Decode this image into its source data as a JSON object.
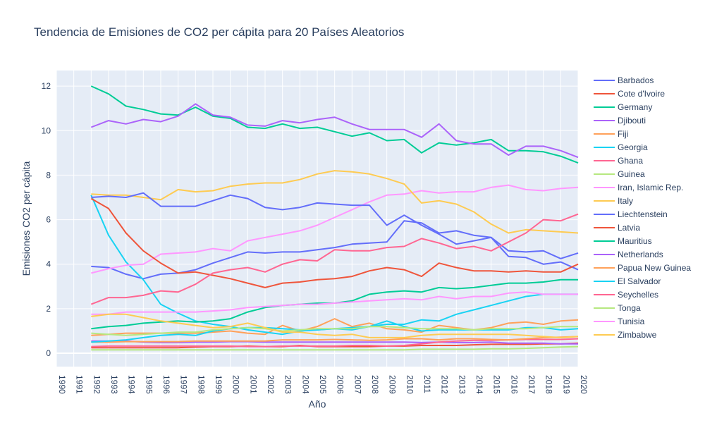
{
  "chart_data": {
    "type": "line",
    "title": "Tendencia de Emisiones de CO2 per cápita para 20 Países Aleatorios",
    "xlabel": "Año",
    "ylabel": "Emisiones CO2 per cápita",
    "xlim": [
      1990,
      2020
    ],
    "ylim": [
      -0.6,
      12.7
    ],
    "x_ticks": [
      "1990",
      "1991",
      "1992",
      "1993",
      "1994",
      "1995",
      "1996",
      "1997",
      "1998",
      "1999",
      "2000",
      "2001",
      "2002",
      "2003",
      "2004",
      "2005",
      "2006",
      "2007",
      "2008",
      "2009",
      "2010",
      "2011",
      "2012",
      "2013",
      "2014",
      "2015",
      "2016",
      "2017",
      "2018",
      "2019",
      "2020"
    ],
    "y_ticks": [
      0,
      2,
      4,
      6,
      8,
      10,
      12
    ],
    "grid": true,
    "legend_position": "right",
    "x": [
      1992,
      1993,
      1994,
      1995,
      1996,
      1997,
      1998,
      1999,
      2000,
      2001,
      2002,
      2003,
      2004,
      2005,
      2006,
      2007,
      2008,
      2009,
      2010,
      2011,
      2012,
      2013,
      2014,
      2015,
      2016,
      2017,
      2018,
      2019,
      2020
    ],
    "series": [
      {
        "name": "Barbados",
        "color": "#636efa",
        "values": [
          3.9,
          3.85,
          3.55,
          3.35,
          3.55,
          3.6,
          3.75,
          4.05,
          4.3,
          4.55,
          4.5,
          4.55,
          4.55,
          4.65,
          4.75,
          4.9,
          4.95,
          5.0,
          5.95,
          5.85,
          5.4,
          5.5,
          5.3,
          5.2,
          4.6,
          4.55,
          4.6,
          4.25,
          4.5
        ]
      },
      {
        "name": "Cote d'Ivoire",
        "color": "#ef553b",
        "values": [
          0.25,
          0.25,
          0.25,
          0.25,
          0.25,
          0.25,
          0.28,
          0.3,
          0.3,
          0.32,
          0.3,
          0.3,
          0.35,
          0.3,
          0.3,
          0.3,
          0.3,
          0.32,
          0.32,
          0.35,
          0.35,
          0.35,
          0.38,
          0.4,
          0.4,
          0.4,
          0.42,
          0.42,
          0.45
        ]
      },
      {
        "name": "Germany",
        "color": "#00cc96",
        "values": [
          12.0,
          11.65,
          11.1,
          10.95,
          10.75,
          10.7,
          11.05,
          10.65,
          10.55,
          10.15,
          10.1,
          10.3,
          10.1,
          10.15,
          9.95,
          9.75,
          9.9,
          9.55,
          9.6,
          9.0,
          9.45,
          9.35,
          9.45,
          9.6,
          9.1,
          9.1,
          9.05,
          8.85,
          8.55
        ]
      },
      {
        "name": "Djibouti",
        "color": "#ab63fa",
        "values": [
          0.55,
          0.55,
          0.55,
          0.5,
          0.48,
          0.48,
          0.5,
          0.5,
          0.52,
          0.52,
          0.5,
          0.5,
          0.5,
          0.5,
          0.5,
          0.5,
          0.5,
          0.5,
          0.5,
          0.48,
          0.5,
          0.48,
          0.48,
          0.5,
          0.45,
          0.45,
          0.45,
          0.42,
          0.42
        ]
      },
      {
        "name": "Fiji",
        "color": "#ffa15a",
        "values": [
          0.8,
          0.85,
          0.9,
          0.9,
          0.9,
          0.9,
          0.9,
          0.95,
          1.0,
          0.9,
          0.85,
          1.25,
          1.0,
          1.2,
          1.55,
          1.2,
          1.35,
          1.1,
          1.05,
          0.95,
          1.25,
          1.15,
          1.05,
          1.15,
          1.35,
          1.4,
          1.3,
          1.45,
          1.5
        ]
      },
      {
        "name": "Georgia",
        "color": "#19d3f3",
        "values": [
          7.1,
          5.3,
          4.1,
          3.3,
          2.2,
          1.8,
          1.45,
          1.3,
          1.2,
          1.05,
          0.95,
          0.85,
          1.0,
          1.05,
          1.1,
          1.15,
          1.2,
          1.3,
          1.3,
          1.5,
          1.45,
          1.75,
          1.95,
          2.15,
          2.35,
          2.55,
          2.65,
          2.65,
          2.65
        ]
      },
      {
        "name": "Ghana",
        "color": "#ff6692",
        "values": [
          0.3,
          0.32,
          0.32,
          0.32,
          0.32,
          0.32,
          0.32,
          0.32,
          0.32,
          0.3,
          0.3,
          0.32,
          0.32,
          0.32,
          0.32,
          0.35,
          0.35,
          0.32,
          0.35,
          0.42,
          0.5,
          0.55,
          0.58,
          0.58,
          0.6,
          0.62,
          0.62,
          0.62,
          0.65
        ]
      },
      {
        "name": "Guinea",
        "color": "#b6e880",
        "values": [
          0.15,
          0.15,
          0.15,
          0.15,
          0.15,
          0.15,
          0.15,
          0.15,
          0.15,
          0.15,
          0.15,
          0.15,
          0.15,
          0.15,
          0.15,
          0.15,
          0.15,
          0.15,
          0.15,
          0.18,
          0.18,
          0.18,
          0.18,
          0.2,
          0.2,
          0.22,
          0.25,
          0.28,
          0.3
        ]
      },
      {
        "name": "Iran, Islamic Rep.",
        "color": "#ff97ff",
        "values": [
          3.6,
          3.8,
          3.95,
          4.0,
          4.45,
          4.5,
          4.55,
          4.7,
          4.6,
          5.05,
          5.2,
          5.35,
          5.5,
          5.75,
          6.1,
          6.45,
          6.8,
          7.1,
          7.15,
          7.3,
          7.2,
          7.25,
          7.25,
          7.45,
          7.55,
          7.35,
          7.3,
          7.4,
          7.45
        ]
      },
      {
        "name": "Italy",
        "color": "#fecb52",
        "values": [
          7.15,
          7.1,
          7.1,
          7.0,
          6.9,
          7.35,
          7.25,
          7.3,
          7.5,
          7.6,
          7.65,
          7.65,
          7.8,
          8.05,
          8.2,
          8.15,
          8.05,
          7.85,
          7.6,
          6.75,
          6.85,
          6.7,
          6.35,
          5.8,
          5.4,
          5.55,
          5.5,
          5.45,
          5.4
        ]
      },
      {
        "name": "Liechtenstein",
        "color": "#636efa",
        "values": [
          7.0,
          7.05,
          7.0,
          7.2,
          6.6,
          6.6,
          6.6,
          6.85,
          7.1,
          6.95,
          6.55,
          6.45,
          6.55,
          6.75,
          6.7,
          6.65,
          6.65,
          5.75,
          6.2,
          5.75,
          5.35,
          4.9,
          5.05,
          5.2,
          4.35,
          4.3,
          4.0,
          4.1,
          3.75
        ]
      },
      {
        "name": "Latvia",
        "color": "#ef553b",
        "values": [
          6.95,
          6.5,
          5.4,
          4.6,
          4.05,
          3.6,
          3.65,
          3.5,
          3.35,
          3.15,
          2.95,
          3.15,
          3.2,
          3.3,
          3.35,
          3.45,
          3.7,
          3.85,
          3.75,
          3.45,
          4.05,
          3.85,
          3.7,
          3.7,
          3.65,
          3.7,
          3.65,
          3.65,
          4.0
        ]
      },
      {
        "name": "Mauritius",
        "color": "#00cc96",
        "values": [
          1.1,
          1.2,
          1.25,
          1.35,
          1.4,
          1.45,
          1.4,
          1.45,
          1.55,
          1.85,
          2.05,
          2.15,
          2.2,
          2.25,
          2.25,
          2.35,
          2.65,
          2.75,
          2.8,
          2.75,
          2.95,
          2.9,
          2.95,
          3.05,
          3.15,
          3.15,
          3.2,
          3.3,
          3.3
        ]
      },
      {
        "name": "Netherlands",
        "color": "#ab63fa",
        "values": [
          10.15,
          10.45,
          10.3,
          10.5,
          10.4,
          10.65,
          11.2,
          10.7,
          10.6,
          10.25,
          10.2,
          10.45,
          10.35,
          10.5,
          10.6,
          10.3,
          10.05,
          10.05,
          10.05,
          9.7,
          10.3,
          9.55,
          9.4,
          9.4,
          8.9,
          9.3,
          9.3,
          9.1,
          8.8
        ]
      },
      {
        "name": "Papua New Guinea",
        "color": "#ffa15a",
        "values": [
          0.5,
          0.5,
          0.52,
          0.52,
          0.52,
          0.52,
          0.55,
          0.55,
          0.55,
          0.55,
          0.55,
          0.6,
          0.6,
          0.6,
          0.62,
          0.6,
          0.58,
          0.6,
          0.65,
          0.65,
          0.6,
          0.65,
          0.65,
          0.62,
          0.6,
          0.65,
          0.7,
          0.72,
          0.75
        ]
      },
      {
        "name": "El Salvador",
        "color": "#19d3f3",
        "values": [
          0.5,
          0.55,
          0.6,
          0.7,
          0.8,
          0.85,
          0.8,
          1.0,
          1.1,
          1.15,
          1.15,
          1.1,
          1.05,
          1.05,
          1.1,
          1.05,
          1.2,
          1.45,
          1.2,
          1.0,
          1.05,
          1.05,
          1.05,
          1.05,
          1.05,
          1.15,
          1.15,
          1.05,
          1.1
        ]
      },
      {
        "name": "Seychelles",
        "color": "#ff6692",
        "values": [
          2.2,
          2.5,
          2.5,
          2.6,
          2.8,
          2.75,
          3.1,
          3.6,
          3.75,
          3.85,
          3.65,
          4.0,
          4.2,
          4.15,
          4.65,
          4.6,
          4.6,
          4.75,
          4.8,
          5.15,
          4.95,
          4.7,
          4.8,
          4.6,
          5.0,
          5.4,
          6.0,
          5.95,
          6.25
        ]
      },
      {
        "name": "Tonga",
        "color": "#b6e880",
        "values": [
          0.9,
          0.85,
          0.8,
          0.85,
          0.9,
          0.95,
          0.95,
          1.05,
          1.1,
          1.15,
          1.1,
          1.0,
          1.05,
          1.1,
          1.1,
          1.1,
          1.2,
          1.2,
          1.15,
          1.1,
          1.1,
          1.1,
          1.05,
          1.1,
          1.1,
          1.1,
          1.15,
          1.2,
          1.2
        ]
      },
      {
        "name": "Tunisia",
        "color": "#ff97ff",
        "values": [
          1.75,
          1.75,
          1.85,
          1.85,
          1.85,
          1.85,
          1.85,
          1.9,
          1.95,
          2.05,
          2.1,
          2.15,
          2.2,
          2.2,
          2.25,
          2.3,
          2.35,
          2.4,
          2.45,
          2.4,
          2.55,
          2.45,
          2.55,
          2.55,
          2.7,
          2.75,
          2.65,
          2.65,
          2.65
        ]
      },
      {
        "name": "Zimbabwe",
        "color": "#fecb52",
        "values": [
          1.65,
          1.75,
          1.75,
          1.6,
          1.45,
          1.35,
          1.25,
          1.15,
          1.2,
          1.35,
          1.15,
          0.95,
          0.95,
          0.85,
          0.8,
          0.85,
          0.7,
          0.7,
          0.7,
          0.8,
          0.85,
          0.85,
          0.85,
          0.85,
          0.85,
          0.8,
          0.75,
          0.7,
          0.75
        ]
      }
    ]
  }
}
